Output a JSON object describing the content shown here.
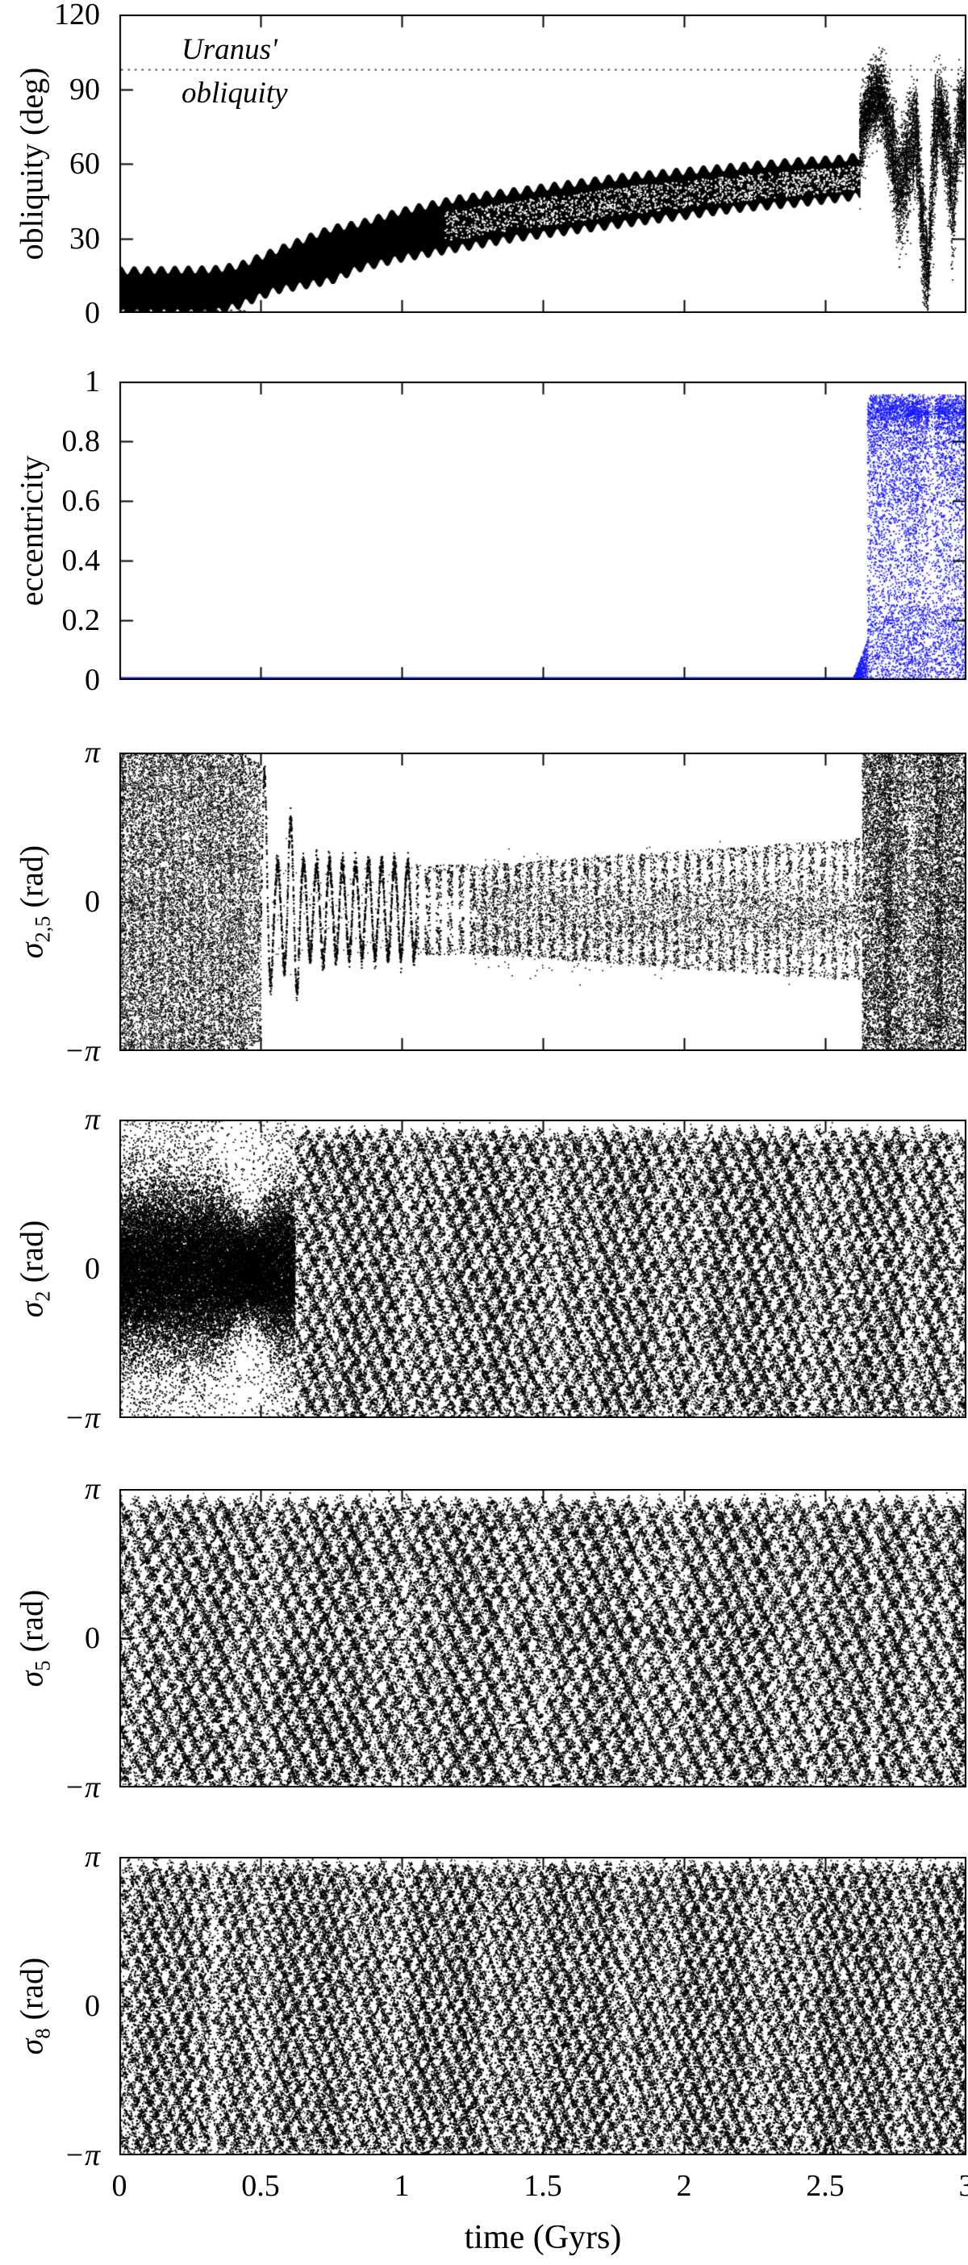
{
  "chart_data": {
    "type": "scatter",
    "title": "",
    "xlabel": "time (Gyrs)",
    "x_range": [
      0,
      3
    ],
    "x_ticks": [
      {
        "v": 0,
        "label": "0"
      },
      {
        "v": 0.5,
        "label": "0.5"
      },
      {
        "v": 1,
        "label": "1"
      },
      {
        "v": 1.5,
        "label": "1.5"
      },
      {
        "v": 2,
        "label": "2"
      },
      {
        "v": 2.5,
        "label": "2.5"
      },
      {
        "v": 3,
        "label": "3"
      }
    ],
    "colors": {
      "background": "#ffffff",
      "data_black": "#000000",
      "data_blue": "#1717ff",
      "dotted_line": "#444444",
      "axis": "#000000"
    },
    "legend": "none",
    "grid": "off",
    "panels": [
      {
        "id": "obliquity",
        "ylabel_parts": {
          "main": "obliquity (deg)",
          "sub": "",
          "rest": ""
        },
        "y_range": [
          0,
          120
        ],
        "y_ticks": [
          {
            "v": 0,
            "label": "0"
          },
          {
            "v": 30,
            "label": "30"
          },
          {
            "v": 60,
            "label": "60"
          },
          {
            "v": 90,
            "label": "90"
          },
          {
            "v": 120,
            "label": "120"
          }
        ],
        "color": "#000000",
        "annotation": {
          "line1": "Uranus'",
          "line2": "obliquity",
          "value_deg": 97.8
        },
        "render": {
          "type": "band_chaos",
          "band_envelope": [
            [
              0,
              0,
              17
            ],
            [
              0.33,
              0,
              17.5
            ],
            [
              0.42,
              3,
              19
            ],
            [
              0.55,
              9,
              25
            ],
            [
              0.75,
              13,
              34
            ],
            [
              0.85,
              18,
              36
            ],
            [
              1.0,
              22,
              41
            ],
            [
              1.2,
              26,
              46
            ],
            [
              1.4,
              30,
              49
            ],
            [
              1.6,
              33,
              52
            ],
            [
              1.8,
              36,
              55
            ],
            [
              2.0,
              39,
              57
            ],
            [
              2.2,
              42,
              59
            ],
            [
              2.4,
              44,
              61
            ],
            [
              2.55,
              46,
              62
            ],
            [
              2.62,
              47,
              63
            ]
          ],
          "edge_wave": {
            "period": 0.048,
            "amp": 1.6
          },
          "speckle_from": 1.15,
          "floor_dots_until": 0.45,
          "chaos_mean_spread": [
            [
              2.62,
              70,
              16
            ],
            [
              2.66,
              86,
              12
            ],
            [
              2.7,
              87,
              13
            ],
            [
              2.73,
              70,
              18
            ],
            [
              2.76,
              48,
              20
            ],
            [
              2.79,
              62,
              22
            ],
            [
              2.82,
              74,
              18
            ],
            [
              2.845,
              28,
              24
            ],
            [
              2.862,
              14,
              13
            ],
            [
              2.878,
              58,
              28
            ],
            [
              2.9,
              82,
              14
            ],
            [
              2.93,
              68,
              20
            ],
            [
              2.95,
              44,
              24
            ],
            [
              2.97,
              76,
              16
            ],
            [
              3.0,
              80,
              13
            ]
          ]
        }
      },
      {
        "id": "eccentricity",
        "ylabel_parts": {
          "main": "eccentricity",
          "sub": "",
          "rest": ""
        },
        "y_range": [
          0,
          1
        ],
        "y_ticks": [
          {
            "v": 0,
            "label": "0"
          },
          {
            "v": 0.2,
            "label": "0.2"
          },
          {
            "v": 0.4,
            "label": "0.4"
          },
          {
            "v": 0.6,
            "label": "0.6"
          },
          {
            "v": 0.8,
            "label": "0.8"
          },
          {
            "v": 1,
            "label": "1"
          }
        ],
        "color": "#1717ff",
        "render": {
          "type": "ecc",
          "flat_until": 2.6,
          "bump": [
            2.6,
            2.648,
            0.12
          ],
          "burst": [
            2.648,
            3.0,
            0.96
          ],
          "top_bias_exp": 2.1,
          "light_cols": [
            2.875
          ],
          "dark_cols": [
            2.81
          ]
        }
      },
      {
        "id": "sigma25",
        "ylabel_parts": {
          "main": "σ",
          "sub": "2,5",
          "rest": " (rad)"
        },
        "y_range": [
          -3.14159,
          3.14159
        ],
        "y_ticks": [
          {
            "v": 3.14159,
            "label": "π",
            "italic": true
          },
          {
            "v": 0,
            "label": "0"
          },
          {
            "v": -3.14159,
            "label": "−π",
            "italic": true
          }
        ],
        "color": "#000000",
        "render": {
          "type": "libration",
          "chaos1_until": 0.445,
          "trans_until": 0.5,
          "lib_until": 2.63,
          "A0": 2.9,
          "decay": 0.22,
          "beat_period": 0.115,
          "A_floor": 0.95,
          "grow_from": 1.3,
          "A_end": 1.5,
          "center": -0.15,
          "wave_period": 0.046,
          "comb_from": 1.05,
          "comb_spacing": 0.04,
          "dark_cols": [
            2.72,
            2.9
          ],
          "light_cols": [
            2.8
          ]
        }
      },
      {
        "id": "sigma2",
        "ylabel_parts": {
          "main": "σ",
          "sub": "2",
          "rest": " (rad)"
        },
        "y_range": [
          -3.14159,
          3.14159
        ],
        "y_ticks": [
          {
            "v": 3.14159,
            "label": "π",
            "italic": true
          },
          {
            "v": 0,
            "label": "0"
          },
          {
            "v": -3.14159,
            "label": "−π",
            "italic": true
          }
        ],
        "color": "#000000",
        "render": {
          "type": "texture",
          "pre": {
            "until": 0.62,
            "core_sigma": 0.85,
            "pinch_t": 0.46,
            "pinch_depth": 0.35,
            "pinch_w": 0.07,
            "tail_n": 9,
            "tail_dip": 0.78,
            "tail_dip_t": 0.42,
            "tail_dip_w": 0.1
          },
          "rows": 0.3,
          "zig_amp": 0.17,
          "zig_wl": 0.055,
          "density": 0.8,
          "band_wl": 0.13,
          "band_amp": 0.22,
          "dark_cols": [
            2.72,
            2.88
          ],
          "light_cols": [
            2.79
          ],
          "blobs": [],
          "dark_band": null
        }
      },
      {
        "id": "sigma5",
        "ylabel_parts": {
          "main": "σ",
          "sub": "5",
          "rest": " (rad)"
        },
        "y_range": [
          -3.14159,
          3.14159
        ],
        "y_ticks": [
          {
            "v": 3.14159,
            "label": "π",
            "italic": true
          },
          {
            "v": 0,
            "label": "0"
          },
          {
            "v": -3.14159,
            "label": "−π",
            "italic": true
          }
        ],
        "color": "#000000",
        "render": {
          "type": "texture",
          "pre": null,
          "rows": 0.3,
          "zig_amp": 0.18,
          "zig_wl": 0.06,
          "density": 0.78,
          "band_wl": 0.12,
          "band_amp": 0.22,
          "dark_cols": [
            2.71,
            2.76,
            2.96
          ],
          "light_cols": [
            2.67
          ],
          "blobs": [
            [
              0.6,
              -1.3,
              0.05,
              0.7
            ],
            [
              0.645,
              -1.9,
              0.06,
              0.9
            ],
            [
              0.71,
              -2.5,
              0.05,
              0.8
            ],
            [
              0.77,
              -2.9,
              0.04,
              0.6
            ]
          ],
          "dark_band": [
            1.4,
            2.35,
            0.0,
            0.55
          ]
        }
      },
      {
        "id": "sigma8",
        "ylabel_parts": {
          "main": "σ",
          "sub": "8",
          "rest": " (rad)"
        },
        "y_range": [
          -3.14159,
          3.14159
        ],
        "y_ticks": [
          {
            "v": 3.14159,
            "label": "π",
            "italic": true
          },
          {
            "v": 0,
            "label": "0"
          },
          {
            "v": -3.14159,
            "label": "−π",
            "italic": true
          }
        ],
        "color": "#000000",
        "render": {
          "type": "texture",
          "pre": null,
          "rows": 0.29,
          "zig_amp": 0.16,
          "zig_wl": 0.05,
          "density": 0.78,
          "band_wl": 0.16,
          "band_amp": 0.18,
          "dark_cols": [
            2.72,
            2.9,
            2.97
          ],
          "light_cols": [
            0.27,
            0.33
          ],
          "blobs": [],
          "dark_band": null
        }
      }
    ]
  }
}
